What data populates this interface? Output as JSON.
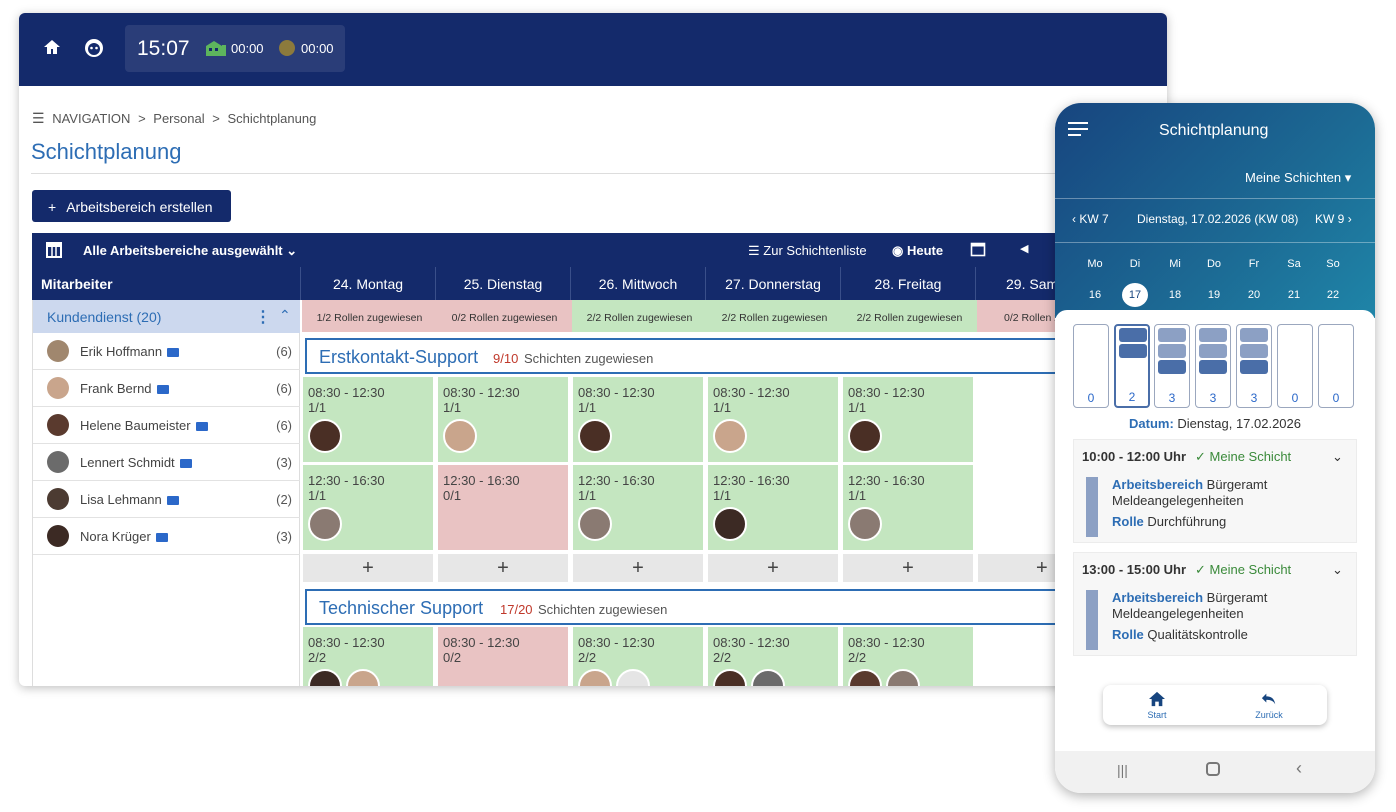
{
  "topbar": {
    "clock": "15:07",
    "timer1": "00:00",
    "timer2": "00:00"
  },
  "breadcrumb": {
    "nav": "NAVIGATION",
    "sep1": ">",
    "personal": "Personal",
    "sep2": ">",
    "schicht": "Schichtplanung"
  },
  "page_title": "Schichtplanung",
  "add_area_button": "Arbeitsbereich erstellen",
  "grid_toolbar": {
    "areas_select": "Alle Arbeitsbereiche ausgewählt",
    "list_link": "Zur Schichtenliste",
    "today": "Heute"
  },
  "columns": {
    "employee_header": "Mitarbeiter",
    "days": [
      "24. Montag",
      "25. Dienstag",
      "26. Mittwoch",
      "27. Donnerstag",
      "28. Freitag",
      "29. Sam"
    ]
  },
  "group": {
    "label": "Kundendienst (20)"
  },
  "employees": [
    {
      "name": "Erik Hoffmann",
      "count": "(6)"
    },
    {
      "name": "Frank Bernd",
      "count": "(6)"
    },
    {
      "name": "Helene Baumeister",
      "count": "(6)"
    },
    {
      "name": "Lennert Schmidt",
      "count": "(3)"
    },
    {
      "name": "Lisa Lehmann",
      "count": "(2)"
    },
    {
      "name": "Nora Krüger",
      "count": "(3)"
    }
  ],
  "roles": [
    "1/2 Rollen zugewiesen",
    "0/2 Rollen zugewiesen",
    "2/2 Rollen zugewiesen",
    "2/2 Rollen zugewiesen",
    "2/2 Rollen zugewiesen",
    "0/2 Rollen z"
  ],
  "area1": {
    "title": "Erstkontakt-Support",
    "count": "9/10",
    "suffix": "Schichten zugewiesen",
    "row1": [
      {
        "t": "08:30 - 12:30",
        "a": "1/1"
      },
      {
        "t": "08:30 - 12:30",
        "a": "1/1"
      },
      {
        "t": "08:30 - 12:30",
        "a": "1/1"
      },
      {
        "t": "08:30 - 12:30",
        "a": "1/1"
      },
      {
        "t": "08:30 - 12:30",
        "a": "1/1"
      }
    ],
    "row2": [
      {
        "t": "12:30 - 16:30",
        "a": "1/1"
      },
      {
        "t": "12:30 - 16:30",
        "a": "0/1"
      },
      {
        "t": "12:30 - 16:30",
        "a": "1/1"
      },
      {
        "t": "12:30 - 16:30",
        "a": "1/1"
      },
      {
        "t": "12:30 - 16:30",
        "a": "1/1"
      }
    ],
    "add": "+"
  },
  "area2": {
    "title": "Technischer Support",
    "count": "17/20",
    "suffix": "Schichten zugewiesen",
    "row1": [
      {
        "t": "08:30 - 12:30",
        "a": "2/2"
      },
      {
        "t": "08:30 - 12:30",
        "a": "0/2"
      },
      {
        "t": "08:30 - 12:30",
        "a": "2/2"
      },
      {
        "t": "08:30 - 12:30",
        "a": "2/2"
      },
      {
        "t": "08:30 - 12:30",
        "a": "2/2"
      }
    ]
  },
  "phone": {
    "title": "Schichtplanung",
    "filter": "Meine Schichten",
    "prev_week": "KW 7",
    "date_label": "Dienstag, 17.02.2026 (KW 08)",
    "next_week": "KW 9",
    "weekdays": [
      "Mo",
      "Di",
      "Mi",
      "Do",
      "Fr",
      "Sa",
      "So"
    ],
    "daynums": [
      "16",
      "17",
      "18",
      "19",
      "20",
      "21",
      "22"
    ],
    "slot_counts": [
      "0",
      "2",
      "3",
      "3",
      "3",
      "0",
      "0"
    ],
    "datum_label": "Datum:",
    "datum_value": "Dienstag, 17.02.2026",
    "cards": [
      {
        "time": "10:00 - 12:00 Uhr",
        "mine": "Meine Schicht",
        "area_label": "Arbeitsbereich",
        "area_val": "Bürgeramt",
        "area_val2": "Meldeangelegenheiten",
        "role_label": "Rolle",
        "role_val": "Durchführung"
      },
      {
        "time": "13:00 - 15:00 Uhr",
        "mine": "Meine Schicht",
        "area_label": "Arbeitsbereich",
        "area_val": "Bürgeramt",
        "area_val2": "Meldeangelegenheiten",
        "role_label": "Rolle",
        "role_val": "Qualitätskontrolle"
      }
    ],
    "nav_start": "Start",
    "nav_back": "Zurück"
  },
  "colors": {
    "navy": "#142a6b",
    "accent_blue": "#2d6db4",
    "green_cell": "#c4e6c0",
    "red_cell": "#e9c3c3",
    "teal": "#1c6a94"
  }
}
